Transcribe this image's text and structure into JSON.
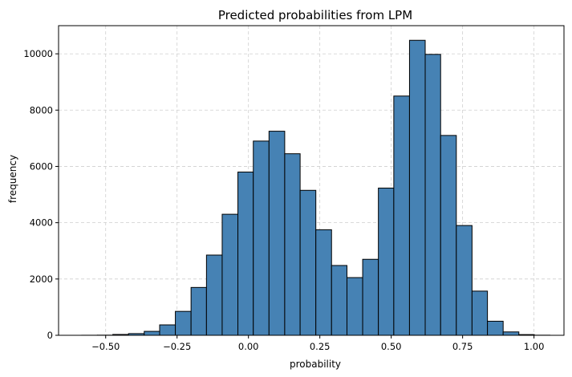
{
  "chart_data": {
    "type": "bar",
    "title": "Predicted probabilities from LPM",
    "xlabel": "probability",
    "ylabel": "frequency",
    "xlim": [
      -0.665,
      1.105
    ],
    "ylim": [
      0,
      11000
    ],
    "grid": true,
    "bar_color": "#4682b4",
    "edge_color": "#000000",
    "xticks": [
      {
        "value": -0.5,
        "label": "−0.50"
      },
      {
        "value": -0.25,
        "label": "−0.25"
      },
      {
        "value": 0.0,
        "label": "0.00"
      },
      {
        "value": 0.25,
        "label": "0.25"
      },
      {
        "value": 0.5,
        "label": "0.50"
      },
      {
        "value": 0.75,
        "label": "0.75"
      },
      {
        "value": 1.0,
        "label": "1.00"
      }
    ],
    "yticks": [
      {
        "value": 0,
        "label": "0"
      },
      {
        "value": 2000,
        "label": "2000"
      },
      {
        "value": 4000,
        "label": "4000"
      },
      {
        "value": 6000,
        "label": "6000"
      },
      {
        "value": 8000,
        "label": "8000"
      },
      {
        "value": 10000,
        "label": "10000"
      }
    ],
    "bins": [
      {
        "x0": -0.584,
        "x1": -0.529,
        "value": 2
      },
      {
        "x0": -0.529,
        "x1": -0.475,
        "value": 5
      },
      {
        "x0": -0.475,
        "x1": -0.42,
        "value": 30
      },
      {
        "x0": -0.42,
        "x1": -0.365,
        "value": 60
      },
      {
        "x0": -0.365,
        "x1": -0.311,
        "value": 140
      },
      {
        "x0": -0.311,
        "x1": -0.256,
        "value": 370
      },
      {
        "x0": -0.256,
        "x1": -0.201,
        "value": 850
      },
      {
        "x0": -0.201,
        "x1": -0.147,
        "value": 1700
      },
      {
        "x0": -0.147,
        "x1": -0.092,
        "value": 2850
      },
      {
        "x0": -0.092,
        "x1": -0.037,
        "value": 4300
      },
      {
        "x0": -0.037,
        "x1": 0.017,
        "value": 5800
      },
      {
        "x0": 0.017,
        "x1": 0.072,
        "value": 6900
      },
      {
        "x0": 0.072,
        "x1": 0.127,
        "value": 7250
      },
      {
        "x0": 0.127,
        "x1": 0.181,
        "value": 6450
      },
      {
        "x0": 0.181,
        "x1": 0.236,
        "value": 5150
      },
      {
        "x0": 0.236,
        "x1": 0.291,
        "value": 3750
      },
      {
        "x0": 0.291,
        "x1": 0.345,
        "value": 2480
      },
      {
        "x0": 0.345,
        "x1": 0.4,
        "value": 2050
      },
      {
        "x0": 0.4,
        "x1": 0.455,
        "value": 2700
      },
      {
        "x0": 0.455,
        "x1": 0.509,
        "value": 5230
      },
      {
        "x0": 0.509,
        "x1": 0.564,
        "value": 8500
      },
      {
        "x0": 0.564,
        "x1": 0.619,
        "value": 10480
      },
      {
        "x0": 0.619,
        "x1": 0.673,
        "value": 9980
      },
      {
        "x0": 0.673,
        "x1": 0.728,
        "value": 7100
      },
      {
        "x0": 0.728,
        "x1": 0.783,
        "value": 3900
      },
      {
        "x0": 0.783,
        "x1": 0.837,
        "value": 1570
      },
      {
        "x0": 0.837,
        "x1": 0.892,
        "value": 500
      },
      {
        "x0": 0.892,
        "x1": 0.947,
        "value": 120
      },
      {
        "x0": 0.947,
        "x1": 1.001,
        "value": 25
      },
      {
        "x0": 1.001,
        "x1": 1.056,
        "value": 4
      }
    ]
  }
}
